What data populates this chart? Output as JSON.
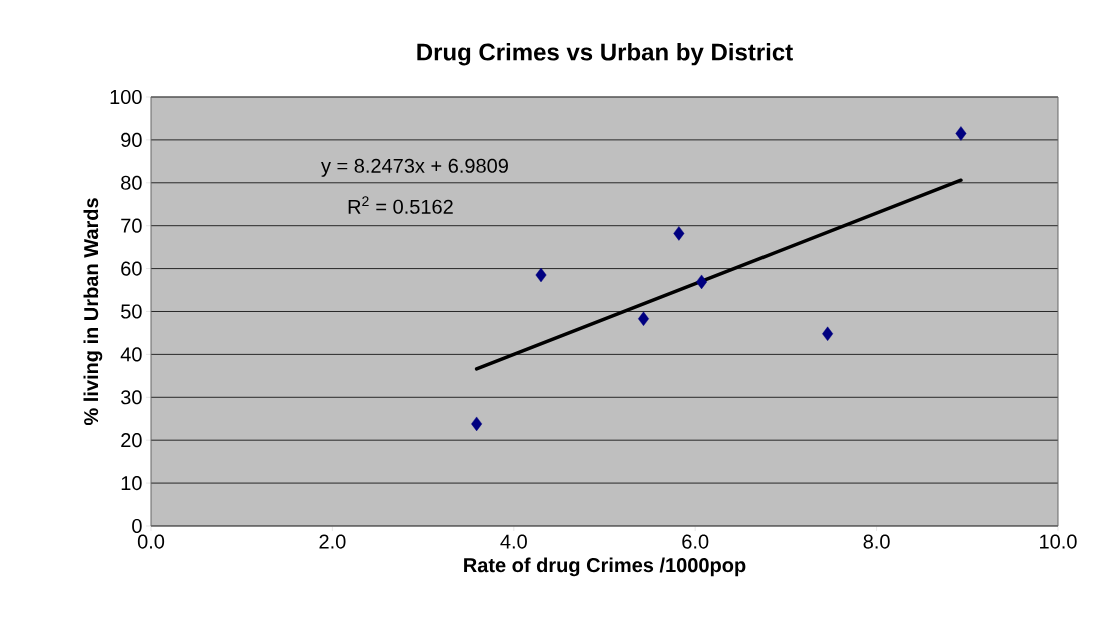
{
  "chart_data": {
    "type": "scatter",
    "title": "Drug Crimes vs Urban by District",
    "xlabel": "Rate of drug Crimes /1000pop",
    "ylabel": "% living in Urban Wards",
    "annotations": [
      "y = 8.2473x + 6.9809",
      "R$^{2}$ = 0.5162"
    ],
    "series": [
      {
        "color": "#000080",
        "marker": "diamond",
        "x": [
          3.59,
          4.3,
          5.43,
          5.82,
          6.07,
          7.46,
          8.93
        ],
        "values": [
          23.8,
          58.5,
          48.3,
          68.2,
          56.9,
          44.8,
          91.5
        ]
      },
      {
        "type": "line",
        "color": "#000000",
        "marker": "none",
        "line_style": "solid",
        "x": [
          3.59,
          8.93
        ],
        "values": [
          36.6,
          80.6
        ]
      }
    ],
    "xlim": [
      0,
      10
    ],
    "ylim": [
      0,
      100
    ],
    "xticks": [
      {
        "value": 0,
        "label": "0.0"
      },
      {
        "value": 2,
        "label": "2.0"
      },
      {
        "value": 4,
        "label": "4.0"
      },
      {
        "value": 6,
        "label": "6.0"
      },
      {
        "value": 8,
        "label": "8.0"
      },
      {
        "value": 10,
        "label": "10.0"
      }
    ],
    "yticks": [
      0,
      10,
      20,
      30,
      40,
      50,
      60,
      70,
      80,
      90,
      100
    ],
    "grid": "y"
  }
}
